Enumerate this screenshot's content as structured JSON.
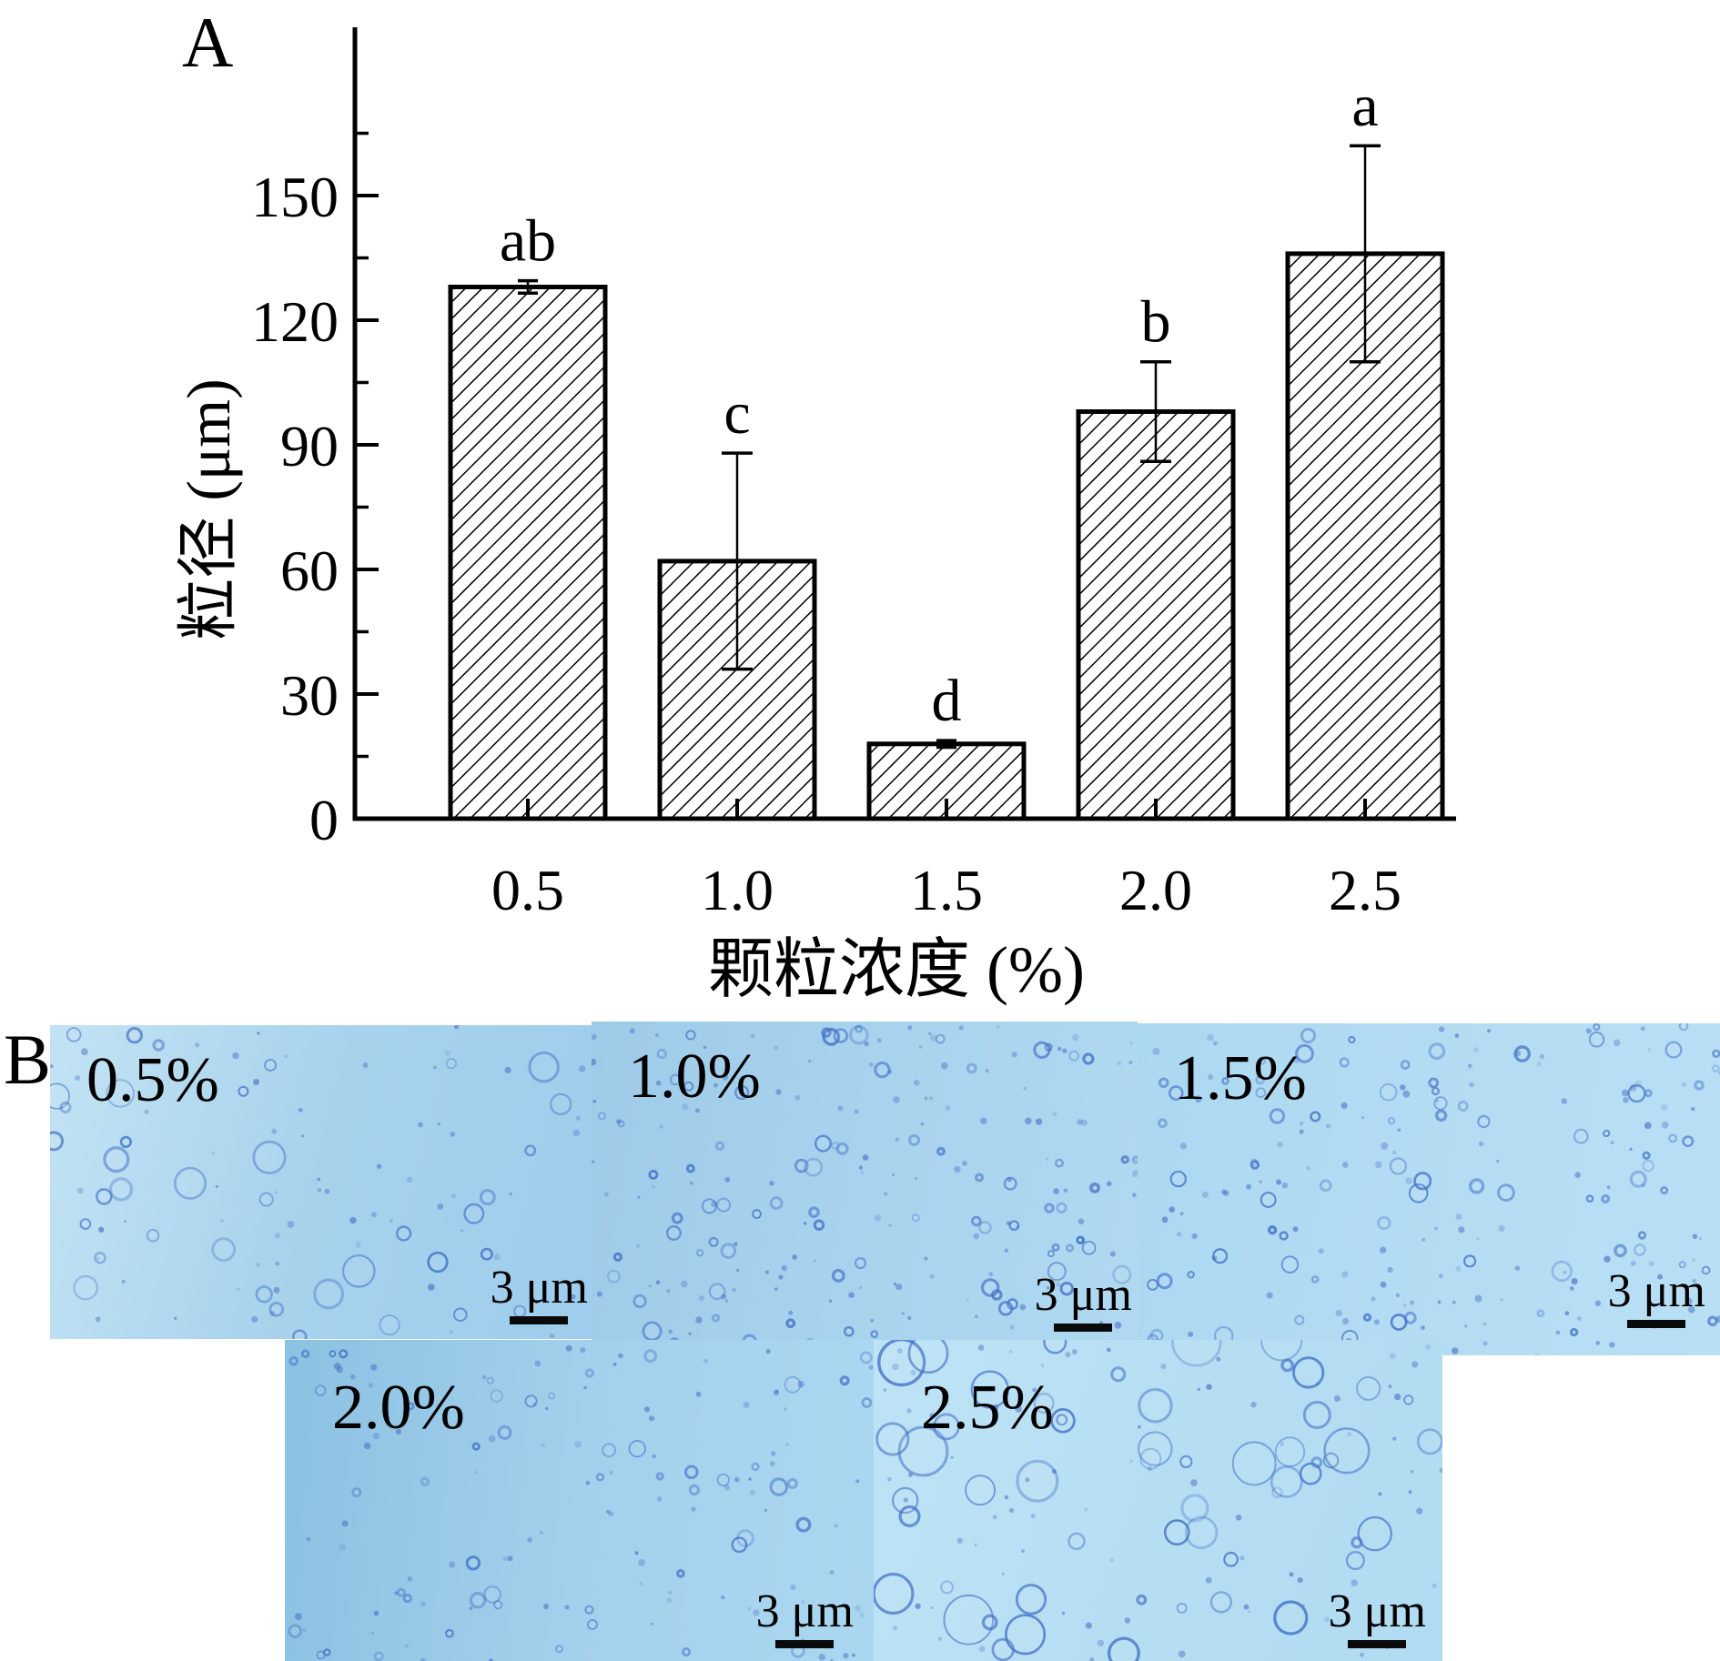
{
  "figure": {
    "panel_a_label": "A",
    "panel_b_label": "B"
  },
  "chart_data": {
    "type": "bar",
    "title": "",
    "xlabel": "颗粒浓度 (%)",
    "ylabel": "粒径 (μm)",
    "categories": [
      "0.5",
      "1.0",
      "1.5",
      "2.0",
      "2.5"
    ],
    "values": [
      128,
      62,
      18,
      98,
      136
    ],
    "errors": [
      1.5,
      26,
      0.8,
      12,
      26
    ],
    "sig_letters": [
      "ab",
      "c",
      "d",
      "b",
      "a"
    ],
    "ylim": [
      0,
      190
    ],
    "yticks": [
      0,
      30,
      60,
      90,
      120,
      150
    ],
    "ytick_labels": [
      "0",
      "30",
      "60",
      "90",
      "120",
      "150"
    ],
    "minor_yticks": [
      15,
      45,
      75,
      105,
      135,
      165
    ],
    "grid": false,
    "legend": "none",
    "bar_style": {
      "fill": "#ffffff",
      "hatch": "diagonal-forward",
      "edge_color": "#000000"
    }
  },
  "panel_b": {
    "tiles": [
      {
        "label": "0.5%",
        "scale_label": "3 μm",
        "colors": {
          "angle": 105,
          "stops": [
            "#c3e3f4",
            "#a6d2ec",
            "#9ecded"
          ]
        },
        "texture": {
          "seed": 11,
          "rings": 38,
          "dots": 60,
          "rmin": 5,
          "rmax": 18,
          "pow": 1.8
        }
      },
      {
        "label": "1.0%",
        "scale_label": "3 μm",
        "colors": {
          "angle": 100,
          "stops": [
            "#9ecbe8",
            "#a8d3ee",
            "#b0d9f1"
          ]
        },
        "texture": {
          "seed": 22,
          "rings": 80,
          "dots": 130,
          "rmin": 3,
          "rmax": 10,
          "pow": 2
        }
      },
      {
        "label": "1.5%",
        "scale_label": "3 μm",
        "colors": {
          "angle": 100,
          "stops": [
            "#abd8f1",
            "#b3dcf3",
            "#b8dff4"
          ]
        },
        "texture": {
          "seed": 33,
          "rings": 85,
          "dots": 130,
          "rmin": 3,
          "rmax": 11,
          "pow": 2
        }
      },
      {
        "label": "2.0%",
        "scale_label": "3 μm",
        "colors": {
          "angle": 95,
          "stops": [
            "#8cc1e2",
            "#a3d0ec",
            "#aad7f0"
          ]
        },
        "texture": {
          "seed": 44,
          "rings": 50,
          "dots": 90,
          "rmin": 3,
          "rmax": 9,
          "pow": 2
        }
      },
      {
        "label": "2.5%",
        "scale_label": "3 μm",
        "colors": {
          "angle": 110,
          "stops": [
            "#bee3f6",
            "#b6def3",
            "#b0dbf2"
          ]
        },
        "texture": {
          "seed": 55,
          "rings": 55,
          "dots": 80,
          "rmin": 4,
          "rmax": 27,
          "pow": 1.2
        }
      }
    ]
  }
}
